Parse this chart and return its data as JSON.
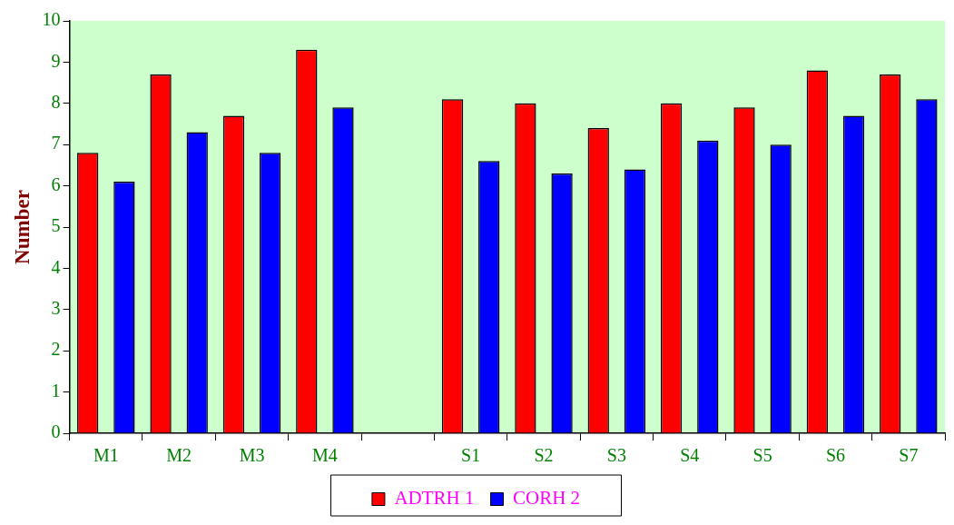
{
  "chart_data": {
    "type": "bar",
    "ylabel": "Number",
    "categories": [
      "M1",
      "M2",
      "M3",
      "M4",
      null,
      "S1",
      "S2",
      "S3",
      "S4",
      "S5",
      "S6",
      "S7"
    ],
    "series": [
      {
        "name": "ADTRH 1",
        "color": "#ff0000",
        "values": [
          6.8,
          8.7,
          7.7,
          9.3,
          null,
          8.1,
          8.0,
          7.4,
          8.0,
          7.9,
          8.8,
          8.7
        ]
      },
      {
        "name": "CORH 2",
        "color": "#0000ff",
        "values": [
          6.1,
          7.3,
          6.8,
          7.9,
          null,
          6.6,
          6.3,
          6.4,
          7.1,
          7.0,
          7.7,
          8.1
        ]
      }
    ],
    "ylim": [
      0,
      10
    ],
    "yticks": [
      0,
      1,
      2,
      3,
      4,
      5,
      6,
      7,
      8,
      9,
      10
    ],
    "grid": false,
    "legend": "bottom"
  }
}
